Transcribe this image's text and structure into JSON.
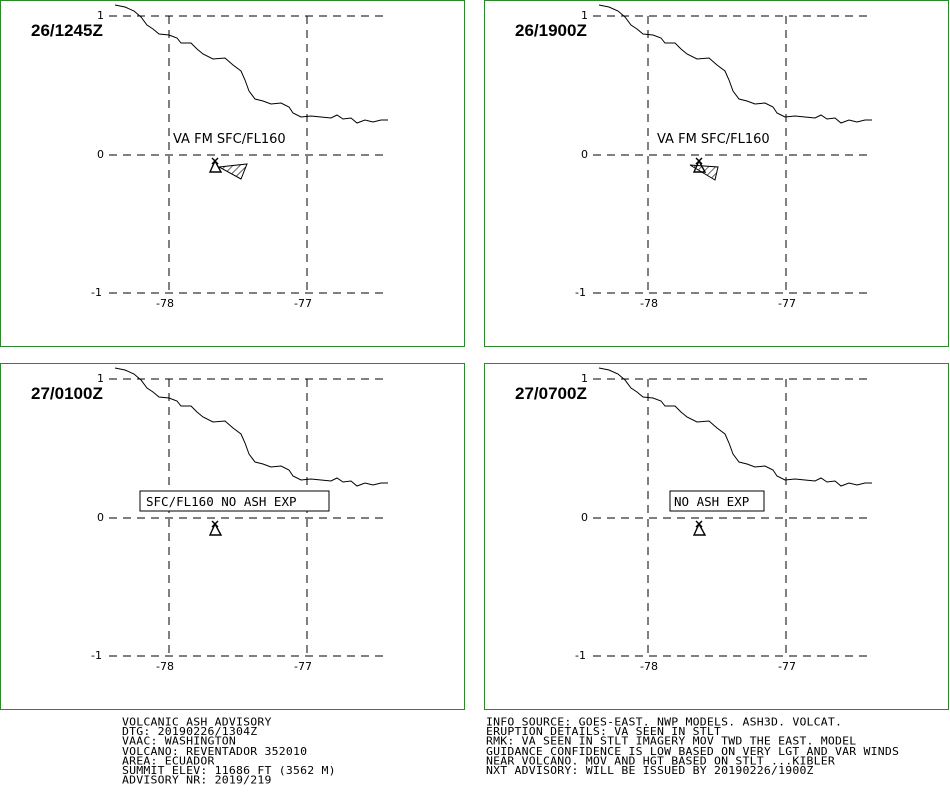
{
  "panels": [
    {
      "time": "26/1245Z",
      "label": "VA FM SFC/FL160",
      "label_boxed": false,
      "ash_cloud_shown": true,
      "y_ticks": [
        "1",
        "0",
        "-1"
      ],
      "x_ticks": [
        "-78",
        "-77"
      ]
    },
    {
      "time": "26/1900Z",
      "label": "VA FM SFC/FL160",
      "label_boxed": false,
      "ash_cloud_shown": true,
      "y_ticks": [
        "1",
        "0",
        "-1"
      ],
      "x_ticks": [
        "-78",
        "-77"
      ]
    },
    {
      "time": "27/0100Z",
      "label": "SFC/FL160 NO ASH EXP",
      "label_boxed": true,
      "ash_cloud_shown": false,
      "y_ticks": [
        "1",
        "0",
        "-1"
      ],
      "x_ticks": [
        "-78",
        "-77"
      ]
    },
    {
      "time": "27/0700Z",
      "label": "NO ASH EXP",
      "label_boxed": true,
      "ash_cloud_shown": false,
      "y_ticks": [
        "1",
        "0",
        "-1"
      ],
      "x_ticks": [
        "-78",
        "-77"
      ]
    }
  ],
  "advisory_left": [
    "VOLCANIC ASH ADVISORY",
    "DTG: 20190226/1304Z",
    "VAAC: WASHINGTON",
    "VOLCANO: REVENTADOR 352010",
    "AREA: ECUADOR",
    "SUMMIT ELEV: 11686 FT (3562 M)",
    "ADVISORY NR: 2019/219"
  ],
  "advisory_right": [
    "INFO SOURCE: GOES-EAST. NWP MODELS. ASH3D. VOLCAT.",
    "ERUPTION DETAILS: VA SEEN IN STLT",
    "RMK: VA SEEN IN STLT IMAGERY MOV TWD THE EAST. MODEL",
    "GUIDANCE CONFIDENCE IS LOW BASED ON VERY LGT AND VAR WINDS",
    "NEAR VOLCANO. MOV AND HGT BASED ON STLT ...KIBLER",
    "NXT ADVISORY: WILL BE ISSUED BY 20190226/1900Z"
  ],
  "colors": {
    "panel_border": "#2a8a2a",
    "lines": "#000000",
    "background": "#ffffff"
  },
  "icons": {
    "volcano": "volcano-triangle-icon",
    "ash_cloud": "hatched-polygon"
  }
}
